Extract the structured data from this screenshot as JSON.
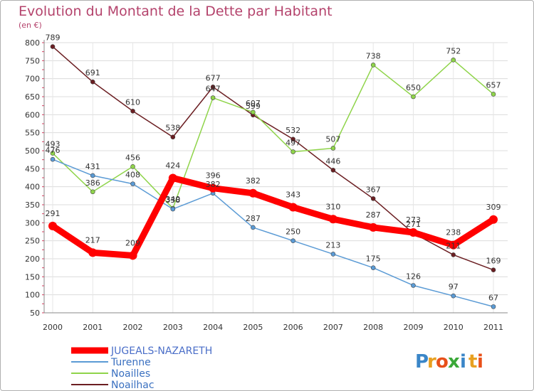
{
  "title": "Evolution du Montant de la Dette par Habitant",
  "unit": "(en €)",
  "logo": {
    "letters": [
      "P",
      "r",
      "o",
      "x",
      "i",
      "t",
      "i"
    ],
    "colors": [
      "#3a86c8",
      "#e8a020",
      "#e8501a",
      "#3aa838",
      "#3a86c8",
      "#e8a020",
      "#e8501a"
    ]
  },
  "chart_data": {
    "type": "line",
    "x": [
      "2000",
      "2001",
      "2002",
      "2003",
      "2004",
      "2005",
      "2006",
      "2007",
      "2008",
      "2009",
      "2010",
      "2011"
    ],
    "ylim": [
      50,
      800
    ],
    "yticks": [
      50,
      100,
      150,
      200,
      250,
      300,
      350,
      400,
      450,
      500,
      550,
      600,
      650,
      700,
      750,
      800
    ],
    "grid": true,
    "legend": "bottom-left",
    "series": [
      {
        "name": "JUGEALS-NAZARETH",
        "color": "#ff0000",
        "values": [
          291,
          217,
          209,
          424,
          396,
          382,
          343,
          310,
          287,
          273,
          238,
          309
        ]
      },
      {
        "name": "Turenne",
        "color": "#5b9bd5",
        "values": [
          476,
          431,
          408,
          338,
          382,
          287,
          250,
          213,
          175,
          126,
          97,
          67
        ]
      },
      {
        "name": "Noailles",
        "color": "#8fd44a",
        "values": [
          493,
          386,
          456,
          340,
          647,
          607,
          497,
          507,
          738,
          650,
          752,
          657
        ]
      },
      {
        "name": "Noailhac",
        "color": "#6b1e22",
        "values": [
          789,
          691,
          610,
          538,
          677,
          599,
          532,
          446,
          367,
          271,
          211,
          169
        ]
      }
    ]
  }
}
